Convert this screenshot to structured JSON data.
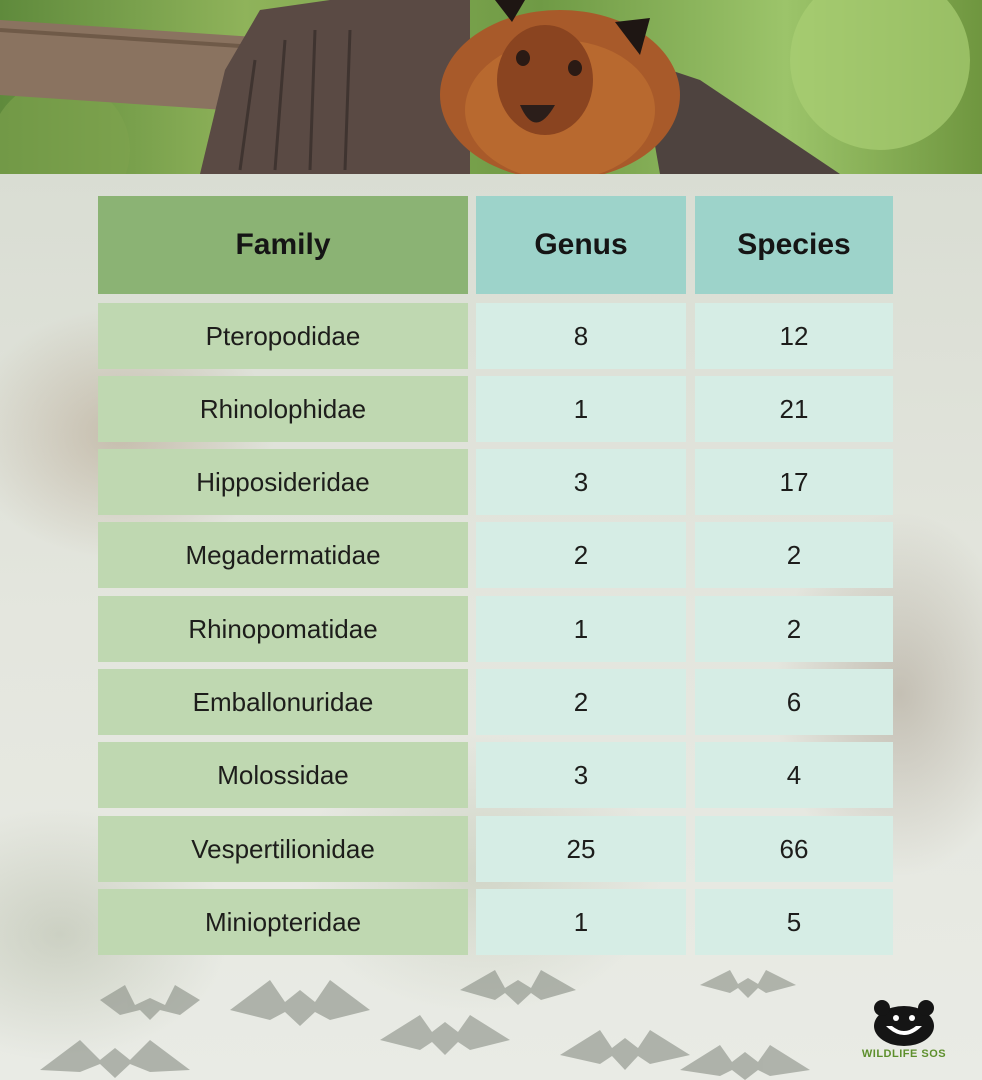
{
  "header_image": {
    "subject": "fruit-bat-photo"
  },
  "table": {
    "headers": {
      "family": "Family",
      "genus": "Genus",
      "species": "Species"
    },
    "rows": [
      {
        "family": "Pteropodidae",
        "genus": "8",
        "species": "12"
      },
      {
        "family": "Rhinolophidae",
        "genus": "1",
        "species": "21"
      },
      {
        "family": "Hipposideridae",
        "genus": "3",
        "species": "17"
      },
      {
        "family": "Megadermatidae",
        "genus": "2",
        "species": "2"
      },
      {
        "family": "Rhinopomatidae",
        "genus": "1",
        "species": "2"
      },
      {
        "family": "Emballonuridae",
        "genus": "2",
        "species": "6"
      },
      {
        "family": "Molossidae",
        "genus": "3",
        "species": "4"
      },
      {
        "family": "Vespertilionidae",
        "genus": "25",
        "species": "66"
      },
      {
        "family": "Miniopteridae",
        "genus": "1",
        "species": "5"
      }
    ]
  },
  "colors": {
    "family_header": "#8bb374",
    "other_header": "#9dd3ca",
    "family_cell": "#bfd8b1",
    "other_cell": "#d6ede5"
  },
  "logo": {
    "text": "WILDLIFE SOS",
    "icon": "sloth-bear-icon"
  }
}
